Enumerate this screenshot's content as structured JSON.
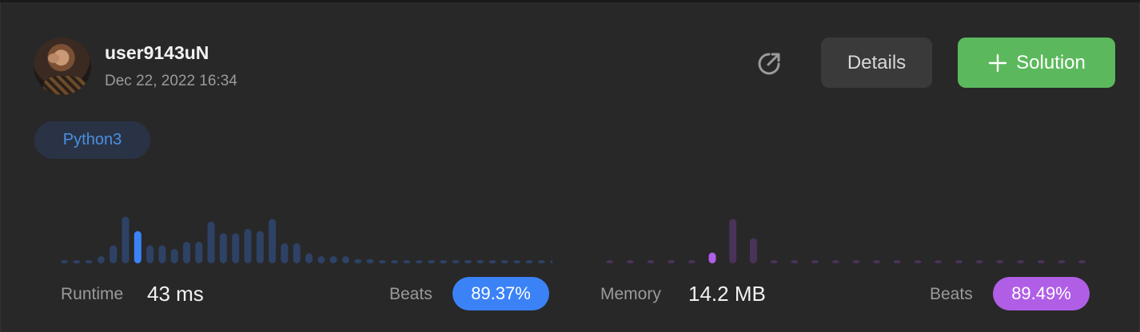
{
  "submission": {
    "username": "user9143uN",
    "date": "Dec 22, 2022 16:34",
    "language": "Python3"
  },
  "actions": {
    "details_label": "Details",
    "solution_label": "Solution"
  },
  "runtime": {
    "label": "Runtime",
    "value": "43 ms",
    "beats_label": "Beats",
    "beats_value": "89.37%",
    "color_bar": "#2e4266",
    "color_active": "#3b82f6",
    "active_index": 6,
    "distribution": [
      3,
      3,
      3,
      10,
      25,
      65,
      45,
      25,
      25,
      20,
      30,
      30,
      58,
      42,
      42,
      48,
      45,
      62,
      28,
      28,
      14,
      10,
      10,
      10,
      6,
      6,
      3,
      3,
      3,
      3,
      3,
      3,
      3,
      3,
      3,
      3,
      3,
      3,
      3,
      3,
      3
    ]
  },
  "memory": {
    "label": "Memory",
    "value": "14.2 MB",
    "beats_label": "Beats",
    "beats_value": "89.49%",
    "color_bar": "#4a3358",
    "color_active": "#b05ee6",
    "active_index": 5,
    "distribution": [
      3,
      3,
      3,
      3,
      3,
      15,
      62,
      35,
      4,
      3,
      3,
      3,
      3,
      3,
      3,
      3,
      3,
      3,
      3,
      3,
      3,
      3,
      3,
      3
    ]
  }
}
